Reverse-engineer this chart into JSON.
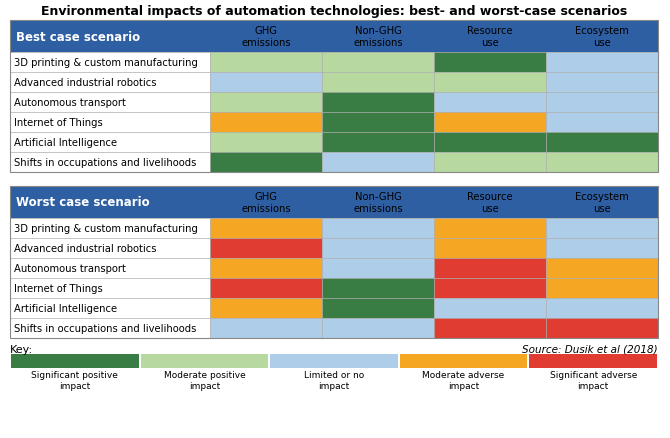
{
  "title": "Environmental impacts of automation technologies: best- and worst-case scenarios",
  "colors": {
    "sig_pos": "#3a7d44",
    "mod_pos": "#b7d9a0",
    "limited": "#aecde8",
    "mod_adv": "#f5a623",
    "sig_adv": "#e03c31",
    "header_bg": "#2e5fa3",
    "header_text": "#ffffff",
    "white": "#ffffff"
  },
  "columns": [
    "GHG\nemissions",
    "Non-GHG\nemissions",
    "Resource\nuse",
    "Ecosystem\nuse"
  ],
  "rows_best": [
    "3D printing & custom manufacturing",
    "Advanced industrial robotics",
    "Autonomous transport",
    "Internet of Things",
    "Artificial Intelligence",
    "Shifts in occupations and livelihoods"
  ],
  "rows_worst": [
    "3D printing & custom manufacturing",
    "Advanced industrial robotics",
    "Autonomous transport",
    "Internet of Things",
    "Artificial Intelligence",
    "Shifts in occupations and livelihoods"
  ],
  "best_data": [
    [
      "mod_pos",
      "mod_pos",
      "sig_pos",
      "limited"
    ],
    [
      "limited",
      "mod_pos",
      "mod_pos",
      "limited"
    ],
    [
      "mod_pos",
      "sig_pos",
      "limited",
      "limited"
    ],
    [
      "mod_adv",
      "sig_pos",
      "mod_adv",
      "limited"
    ],
    [
      "mod_pos",
      "sig_pos",
      "sig_pos",
      "sig_pos"
    ],
    [
      "sig_pos",
      "limited",
      "mod_pos",
      "mod_pos"
    ]
  ],
  "worst_data": [
    [
      "mod_adv",
      "limited",
      "mod_adv",
      "limited"
    ],
    [
      "sig_adv",
      "limited",
      "mod_adv",
      "limited"
    ],
    [
      "mod_adv",
      "limited",
      "sig_adv",
      "mod_adv"
    ],
    [
      "sig_adv",
      "sig_pos",
      "sig_adv",
      "mod_adv"
    ],
    [
      "mod_adv",
      "sig_pos",
      "limited",
      "limited"
    ],
    [
      "limited",
      "limited",
      "sig_adv",
      "sig_adv"
    ]
  ],
  "legend_items": [
    {
      "label": "Significant positive\nimpact",
      "color": "#3a7d44"
    },
    {
      "label": "Moderate positive\nimpact",
      "color": "#b7d9a0"
    },
    {
      "label": "Limited or no\nimpact",
      "color": "#aecde8"
    },
    {
      "label": "Moderate adverse\nimpact",
      "color": "#f5a623"
    },
    {
      "label": "Significant adverse\nimpact",
      "color": "#e03c31"
    }
  ],
  "source_text": "Source: Dusik et al (2018)"
}
